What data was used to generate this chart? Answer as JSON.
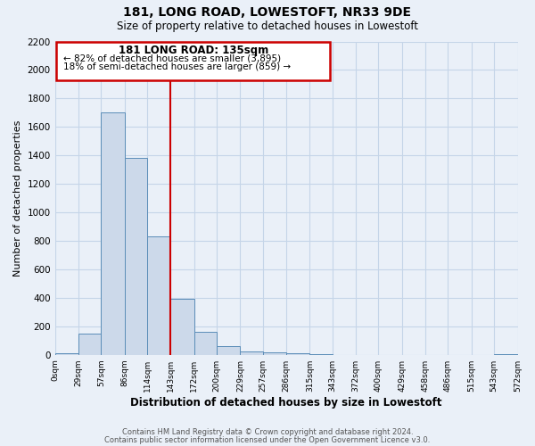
{
  "title": "181, LONG ROAD, LOWESTOFT, NR33 9DE",
  "subtitle": "Size of property relative to detached houses in Lowestoft",
  "xlabel": "Distribution of detached houses by size in Lowestoft",
  "ylabel": "Number of detached properties",
  "bin_edges": [
    0,
    29,
    57,
    86,
    114,
    143,
    172,
    200,
    229,
    257,
    286,
    315,
    343,
    372,
    400,
    429,
    458,
    486,
    515,
    543,
    572
  ],
  "bin_labels": [
    "0sqm",
    "29sqm",
    "57sqm",
    "86sqm",
    "114sqm",
    "143sqm",
    "172sqm",
    "200sqm",
    "229sqm",
    "257sqm",
    "286sqm",
    "315sqm",
    "343sqm",
    "372sqm",
    "400sqm",
    "429sqm",
    "458sqm",
    "486sqm",
    "515sqm",
    "543sqm",
    "572sqm"
  ],
  "counts": [
    10,
    150,
    1700,
    1380,
    830,
    390,
    160,
    60,
    25,
    20,
    10,
    5,
    0,
    0,
    0,
    0,
    0,
    0,
    0,
    5
  ],
  "bar_facecolor": "#ccd9ea",
  "bar_edgecolor": "#5b8db8",
  "grid_color": "#c5d5e8",
  "background_color": "#eaf0f8",
  "vline_color": "#cc0000",
  "vline_x": 143,
  "annotation_title": "181 LONG ROAD: 135sqm",
  "annotation_line1": "← 82% of detached houses are smaller (3,895)",
  "annotation_line2": "18% of semi-detached houses are larger (859) →",
  "annotation_box_edgecolor": "#cc0000",
  "annotation_box_facecolor": "#ffffff",
  "ylim": [
    0,
    2200
  ],
  "yticks": [
    0,
    200,
    400,
    600,
    800,
    1000,
    1200,
    1400,
    1600,
    1800,
    2000,
    2200
  ],
  "footer1": "Contains HM Land Registry data © Crown copyright and database right 2024.",
  "footer2": "Contains public sector information licensed under the Open Government Licence v3.0."
}
